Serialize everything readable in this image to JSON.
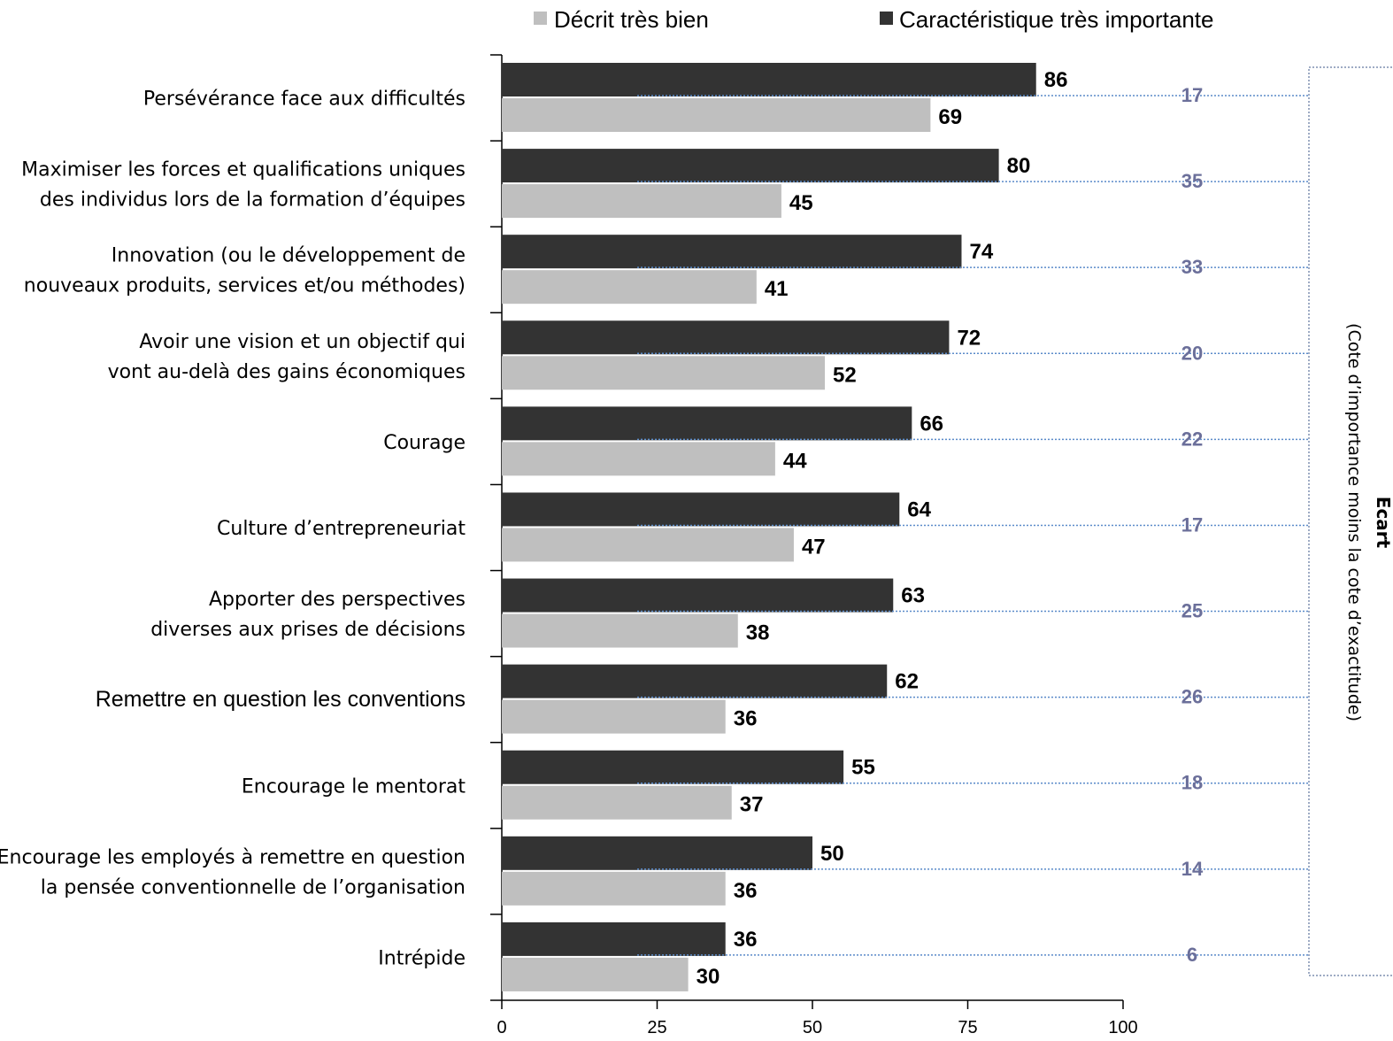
{
  "chart_data": {
    "type": "bar",
    "orientation": "horizontal",
    "categories": [
      "Persévérance face aux difficultés",
      "Maximiser les forces et qualifications uniques des individus lors de la formation d’équipes",
      "Innovation (ou le développement de nouveaux produits, services et/ou méthodes)",
      "Avoir une vision et un objectif qui vont au-delà des gains économiques",
      "Courage",
      "Culture d’entrepreneuriat",
      "Apporter des perspectives diverses aux prises de décisions",
      "Remettre en question les conventions",
      "Encourage le mentorat",
      "Encourage les employés à remettre en question la pensée conventionnelle de l’organisation",
      "Intrépide"
    ],
    "category_lines": [
      [
        "Persévérance face aux difficultés"
      ],
      [
        "Maximiser les forces et qualifications uniques",
        "des individus lors de la formation d’équipes"
      ],
      [
        "Innovation (ou le développement de",
        "nouveaux produits, services et/ou méthodes)"
      ],
      [
        "Avoir une vision et un objectif qui",
        "vont au-delà des gains économiques"
      ],
      [
        "Courage"
      ],
      [
        "Culture d’entrepreneuriat"
      ],
      [
        "Apporter des perspectives",
        "diverses aux prises de décisions"
      ],
      [
        "Remettre en question les conventions"
      ],
      [
        "Encourage le mentorat"
      ],
      [
        "Encourage les employés à remettre en question",
        "la pensée conventionnelle de l’organisation"
      ],
      [
        "Intrépide"
      ]
    ],
    "series": [
      {
        "name": "Caractéristique très importante",
        "color": "#333333",
        "values": [
          86,
          80,
          74,
          72,
          66,
          64,
          63,
          62,
          55,
          50,
          36
        ]
      },
      {
        "name": "Décrit très bien",
        "color": "#bfbfbf",
        "values": [
          69,
          45,
          41,
          52,
          44,
          47,
          38,
          36,
          37,
          36,
          30
        ]
      }
    ],
    "gap": {
      "title": "Ecart",
      "subtitle": "(Cote d’importance moins la cote d’exactitude)",
      "values": [
        "17",
        "35",
        "33",
        "20",
        "22",
        "17",
        "25",
        "26",
        "18",
        "14",
        "6"
      ],
      "color": "#6b6f9a"
    },
    "xlim": [
      0,
      100
    ],
    "xticks": [
      "0",
      "25",
      "50",
      "75",
      "100"
    ],
    "legend_position": "top",
    "grid": false
  }
}
